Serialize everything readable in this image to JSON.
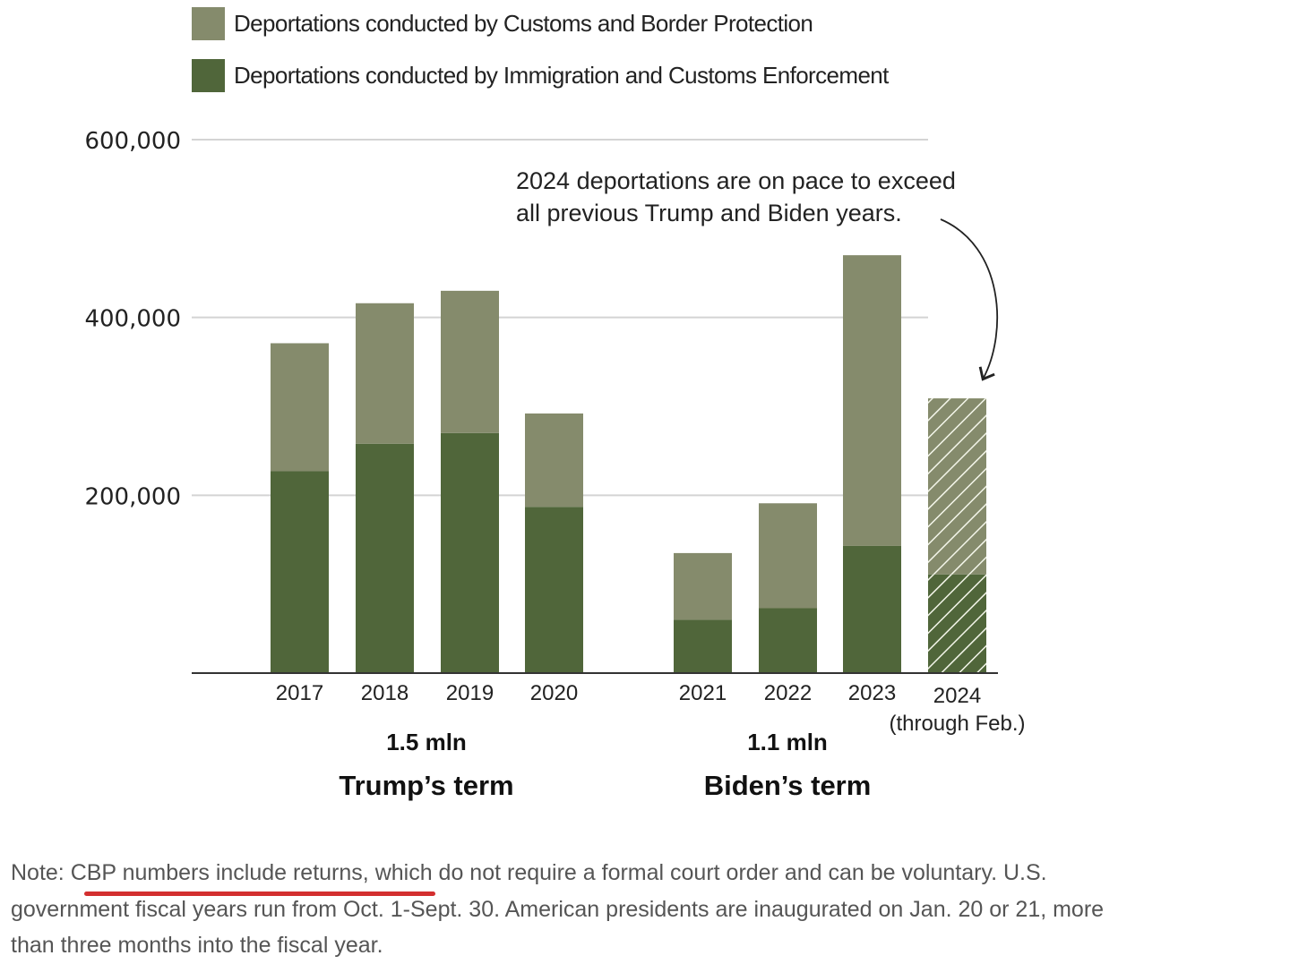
{
  "legend": [
    {
      "label": "Deportations conducted by Customs and Border Protection",
      "color": "#858b6c"
    },
    {
      "label": "Deportations conducted by Immigration and Customs Enforcement",
      "color": "#50663a"
    }
  ],
  "annotation": {
    "line1": "2024 deportations are on pace to exceed",
    "line2": "all previous Trump and Biden years."
  },
  "terms": [
    {
      "total": "1.5 mln",
      "name": "Trump’s term"
    },
    {
      "total": "1.1 mln",
      "name": "Biden’s term"
    }
  ],
  "note": {
    "prefix": "Note: ",
    "highlighted": "CBP numbers include returns",
    "rest_line1": ", which do not require a formal court order and can be voluntary. U.S.",
    "line2": "government fiscal years run from Oct. 1-Sept. 30. American presidents are inaugurated on Jan. 20 or 21, more",
    "line3": "than three months into the fiscal year.",
    "highlight_color": "#d32f2f"
  },
  "chart_data": {
    "type": "bar",
    "stacked": true,
    "title": "",
    "xlabel": "",
    "ylabel": "",
    "ylim": [
      0,
      600000
    ],
    "yticks": [
      {
        "value": 200000,
        "label": "200,000"
      },
      {
        "value": 400000,
        "label": "400,000"
      },
      {
        "value": 600000,
        "label": "600,000"
      }
    ],
    "grid": true,
    "legend_position": "top-left",
    "categories": [
      "2017",
      "2018",
      "2019",
      "2020",
      "2021",
      "2022",
      "2023",
      "2024"
    ],
    "category_sublabels": {
      "2024": "(through Feb.)"
    },
    "series": [
      {
        "name": "Deportations conducted by Immigration and Customs Enforcement",
        "color": "#50663a",
        "values": [
          227000,
          258000,
          270000,
          187000,
          60000,
          73000,
          143000,
          111000
        ]
      },
      {
        "name": "Deportations conducted by Customs and Border Protection",
        "color": "#858b6c",
        "values": [
          144000,
          158000,
          160000,
          105000,
          75000,
          118000,
          327000,
          198000
        ]
      }
    ],
    "hatched_categories": [
      "2024"
    ],
    "groups": [
      {
        "label": "Trump’s term",
        "total": "1.5 mln",
        "categories": [
          "2017",
          "2018",
          "2019",
          "2020"
        ]
      },
      {
        "label": "Biden’s term",
        "total": "1.1 mln",
        "categories": [
          "2021",
          "2022",
          "2023",
          "2024"
        ]
      }
    ],
    "annotations": [
      {
        "text": "2024 deportations are on pace to exceed all previous Trump and Biden years.",
        "target": "2024"
      }
    ]
  }
}
